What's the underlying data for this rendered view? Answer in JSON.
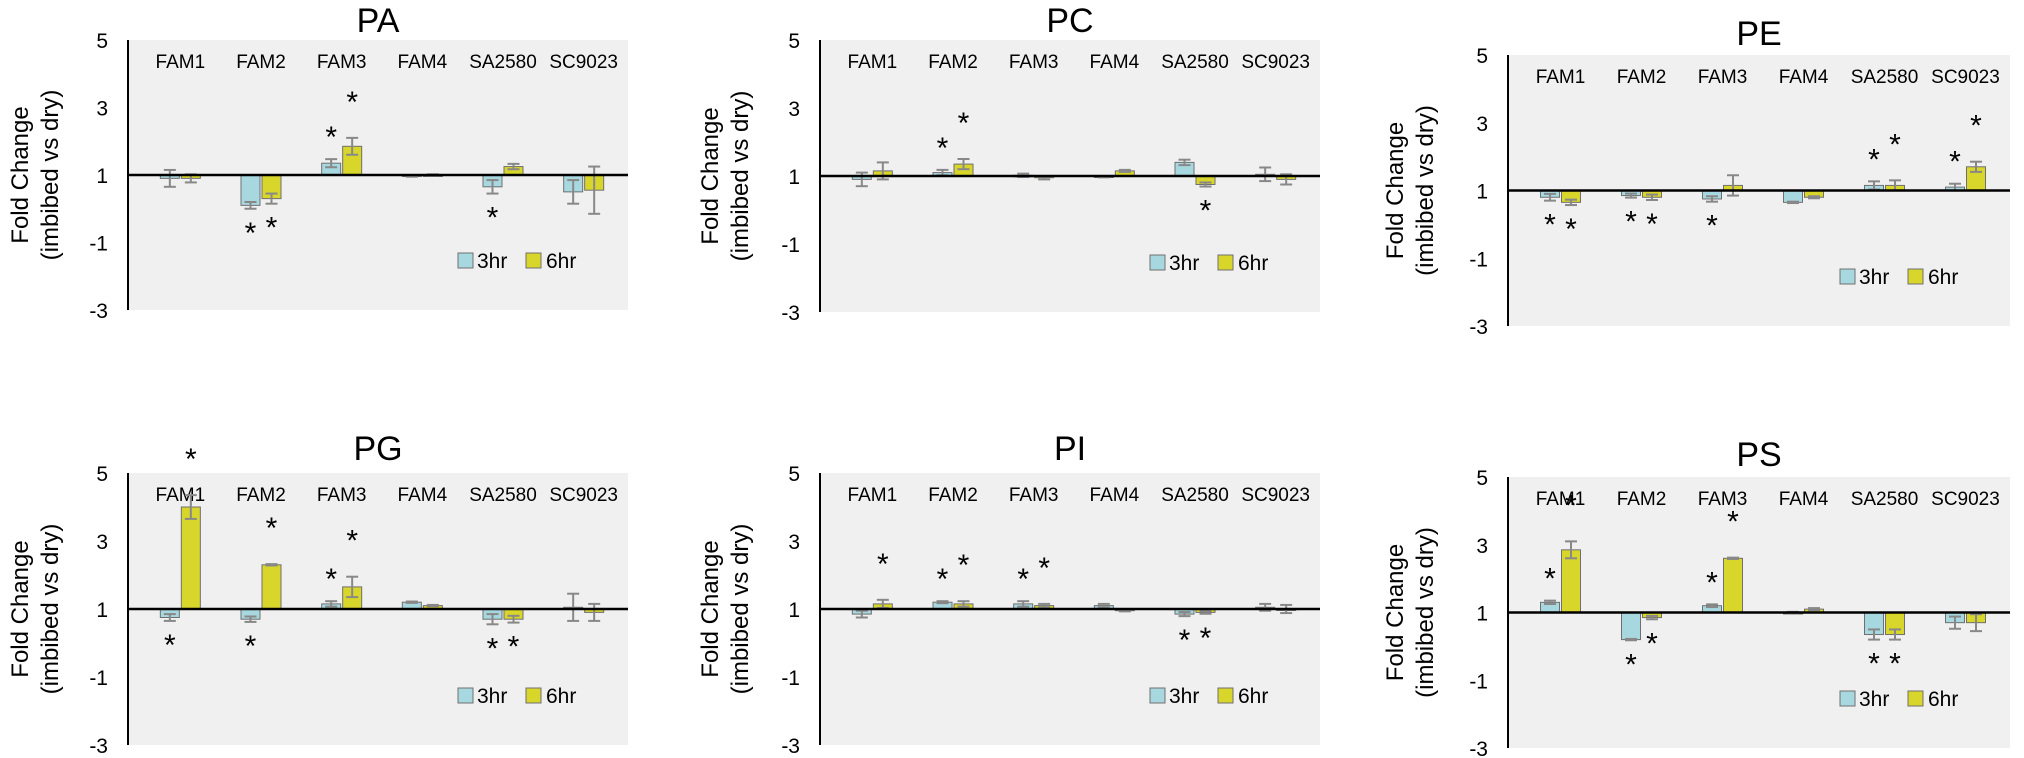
{
  "figure": {
    "width": 2024,
    "height": 758
  },
  "colors": {
    "series_3hr": "#a8d8df",
    "series_6hr": "#d8d62a",
    "bar_stroke": "#6f6f6f",
    "plot_background": "#f0f0f0",
    "axis": "#000000",
    "error_bar": "#888888"
  },
  "chart_data": [
    {
      "type": "bar",
      "title": "PA",
      "ylabel_line1": "Fold Change",
      "ylabel_line2": "(imbibed vs dry)",
      "yticks": [
        "5",
        "3",
        "1",
        "-1",
        "-3"
      ],
      "ylim": [
        -3,
        5
      ],
      "categories": [
        "FAM1",
        "FAM2",
        "FAM3",
        "FAM4",
        "SA2580",
        "SC9023"
      ],
      "legend": [
        "3hr",
        "6hr"
      ],
      "series": [
        {
          "name": "3hr",
          "values": [
            0.9,
            0.1,
            1.35,
            0.97,
            0.65,
            0.5
          ],
          "errors": [
            0.25,
            0.1,
            0.12,
            0.02,
            0.2,
            0.35
          ],
          "stars": [
            false,
            true,
            true,
            false,
            true,
            false
          ]
        },
        {
          "name": "6hr",
          "values": [
            0.9,
            0.3,
            1.85,
            1.0,
            1.25,
            0.55
          ],
          "errors": [
            0.12,
            0.15,
            0.25,
            0.02,
            0.08,
            0.7
          ],
          "stars": [
            false,
            true,
            true,
            false,
            false,
            false
          ]
        }
      ]
    },
    {
      "type": "bar",
      "title": "PC",
      "ylabel_line1": "Fold Change",
      "ylabel_line2": "(imbibed vs dry)",
      "yticks": [
        "5",
        "3",
        "1",
        "-1",
        "-3"
      ],
      "ylim": [
        -3,
        5
      ],
      "categories": [
        "FAM1",
        "FAM2",
        "FAM3",
        "FAM4",
        "SA2580",
        "SC9023"
      ],
      "legend": [
        "3hr",
        "6hr"
      ],
      "series": [
        {
          "name": "3hr",
          "values": [
            0.9,
            1.1,
            1.02,
            0.98,
            1.4,
            1.05
          ],
          "errors": [
            0.2,
            0.08,
            0.05,
            0.02,
            0.08,
            0.2
          ],
          "stars": [
            false,
            true,
            false,
            false,
            false,
            false
          ]
        },
        {
          "name": "6hr",
          "values": [
            1.15,
            1.35,
            0.95,
            1.15,
            0.75,
            0.9
          ],
          "errors": [
            0.25,
            0.15,
            0.05,
            0.03,
            0.06,
            0.15
          ],
          "stars": [
            false,
            true,
            false,
            false,
            true,
            false
          ]
        }
      ]
    },
    {
      "type": "bar",
      "title": "PE",
      "ylabel_line1": "Fold Change",
      "ylabel_line2": "(imbibed vs dry)",
      "yticks": [
        "5",
        "3",
        "1",
        "-1",
        "-3"
      ],
      "ylim": [
        -3,
        5
      ],
      "categories": [
        "FAM1",
        "FAM2",
        "FAM3",
        "FAM4",
        "SA2580",
        "SC9023"
      ],
      "legend": [
        "3hr",
        "6hr"
      ],
      "series": [
        {
          "name": "3hr",
          "values": [
            0.8,
            0.85,
            0.75,
            0.65,
            1.15,
            1.1
          ],
          "errors": [
            0.1,
            0.06,
            0.08,
            0.02,
            0.12,
            0.1
          ],
          "stars": [
            true,
            true,
            true,
            false,
            true,
            true
          ]
        },
        {
          "name": "6hr",
          "values": [
            0.65,
            0.8,
            1.15,
            0.8,
            1.15,
            1.7
          ],
          "errors": [
            0.08,
            0.08,
            0.3,
            0.03,
            0.15,
            0.15
          ],
          "stars": [
            true,
            true,
            false,
            false,
            true,
            true
          ]
        }
      ]
    },
    {
      "type": "bar",
      "title": "PG",
      "ylabel_line1": "Fold Change",
      "ylabel_line2": "(imbibed vs dry)",
      "yticks": [
        "5",
        "3",
        "1",
        "-1",
        "-3"
      ],
      "ylim": [
        -3,
        5
      ],
      "categories": [
        "FAM1",
        "FAM2",
        "FAM3",
        "FAM4",
        "SA2580",
        "SC9023"
      ],
      "legend": [
        "3hr",
        "6hr"
      ],
      "series": [
        {
          "name": "3hr",
          "values": [
            0.75,
            0.7,
            1.15,
            1.2,
            0.7,
            1.05
          ],
          "errors": [
            0.1,
            0.08,
            0.08,
            0.02,
            0.15,
            0.4
          ],
          "stars": [
            true,
            true,
            true,
            false,
            true,
            false
          ]
        },
        {
          "name": "6hr",
          "values": [
            4.0,
            2.3,
            1.65,
            1.1,
            0.7,
            0.9
          ],
          "errors": [
            0.35,
            0.02,
            0.3,
            0.02,
            0.1,
            0.25
          ],
          "stars": [
            true,
            true,
            true,
            false,
            true,
            false
          ]
        }
      ]
    },
    {
      "type": "bar",
      "title": "PI",
      "ylabel_line1": "Fold Change",
      "ylabel_line2": "(imbibed vs dry)",
      "yticks": [
        "5",
        "3",
        "1",
        "-1",
        "-3"
      ],
      "ylim": [
        -3,
        5
      ],
      "categories": [
        "FAM1",
        "FAM2",
        "FAM3",
        "FAM4",
        "SA2580",
        "SC9023"
      ],
      "legend": [
        "3hr",
        "6hr"
      ],
      "series": [
        {
          "name": "3hr",
          "values": [
            0.85,
            1.2,
            1.15,
            1.1,
            0.85,
            1.05
          ],
          "errors": [
            0.1,
            0.03,
            0.08,
            0.05,
            0.06,
            0.1
          ],
          "stars": [
            false,
            true,
            true,
            false,
            true,
            false
          ]
        },
        {
          "name": "6hr",
          "values": [
            1.15,
            1.15,
            1.1,
            0.95,
            0.9,
            1.0
          ],
          "errors": [
            0.12,
            0.08,
            0.05,
            0.02,
            0.04,
            0.12
          ],
          "stars": [
            true,
            true,
            true,
            false,
            true,
            false
          ]
        }
      ]
    },
    {
      "type": "bar",
      "title": "PS",
      "ylabel_line1": "Fold Change",
      "ylabel_line2": "(imbibed vs dry)",
      "yticks": [
        "5",
        "3",
        "1",
        "-1",
        "-3"
      ],
      "ylim": [
        -3,
        5
      ],
      "categories": [
        "FAM1",
        "FAM2",
        "FAM3",
        "FAM4",
        "SA2580",
        "SC9023"
      ],
      "legend": [
        "3hr",
        "6hr"
      ],
      "series": [
        {
          "name": "3hr",
          "values": [
            1.3,
            0.2,
            1.2,
            1.0,
            0.35,
            0.7
          ],
          "errors": [
            0.05,
            0.02,
            0.04,
            0.02,
            0.15,
            0.18
          ],
          "stars": [
            true,
            true,
            true,
            false,
            true,
            false
          ]
        },
        {
          "name": "6hr",
          "values": [
            2.85,
            0.85,
            2.6,
            1.1,
            0.35,
            0.7
          ],
          "errors": [
            0.25,
            0.05,
            0.02,
            0.03,
            0.15,
            0.25
          ],
          "stars": [
            true,
            true,
            true,
            false,
            true,
            false
          ]
        }
      ]
    }
  ]
}
